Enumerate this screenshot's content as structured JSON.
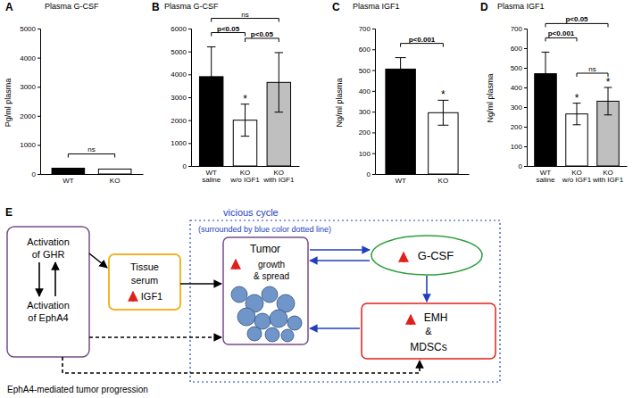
{
  "chart_data": [
    {
      "type": "bar",
      "panel": "A",
      "title": "Plasma G-CSF",
      "y_label": "Pg/ml plasma",
      "categories": [
        "WT",
        "KO"
      ],
      "values": [
        200,
        170
      ],
      "colors": [
        "#000000",
        "#ffffff"
      ],
      "ylim": [
        0,
        5000
      ],
      "yticks": [
        0,
        1000,
        2000,
        3000,
        4000,
        5000
      ],
      "annotations": [
        {
          "text": "ns",
          "between": [
            "WT",
            "KO"
          ]
        }
      ]
    },
    {
      "type": "bar",
      "panel": "B",
      "title": "Plasma G-CSF",
      "categories": [
        "WT saline",
        "KO w/o IGF1",
        "KO with IGF1"
      ],
      "values": [
        3900,
        2000,
        3650
      ],
      "errors": [
        1300,
        700,
        1300
      ],
      "colors": [
        "#000000",
        "#ffffff",
        "#bfbfbf"
      ],
      "bar_annotations": [
        null,
        "*",
        null
      ],
      "ylim": [
        0,
        6000
      ],
      "yticks": [
        0,
        1000,
        2000,
        3000,
        4000,
        5000,
        6000
      ],
      "annotations": [
        {
          "text": "ns",
          "between": [
            "WT saline",
            "KO with IGF1"
          ]
        },
        {
          "text": "p<0.05",
          "between": [
            "WT saline",
            "KO w/o IGF1"
          ]
        },
        {
          "text": "p<0.05",
          "between": [
            "KO w/o IGF1",
            "KO with IGF1"
          ]
        }
      ]
    },
    {
      "type": "bar",
      "panel": "C",
      "title": "Plasma IGF1",
      "y_label": "Ng/ml plasma",
      "categories": [
        "WT",
        "KO"
      ],
      "values": [
        505,
        295
      ],
      "errors": [
        55,
        60
      ],
      "colors": [
        "#000000",
        "#ffffff"
      ],
      "bar_annotations": [
        null,
        "*"
      ],
      "ylim": [
        0,
        700
      ],
      "yticks": [
        0,
        100,
        200,
        300,
        400,
        500,
        600,
        700
      ],
      "annotations": [
        {
          "text": "p<0.001",
          "between": [
            "WT",
            "KO"
          ]
        }
      ]
    },
    {
      "type": "bar",
      "panel": "D",
      "title": "Plasma IGF1",
      "y_label": "Ng/ml plasma",
      "categories": [
        "WT saline",
        "KO w/o IGF1",
        "KO with IGF1"
      ],
      "values": [
        470,
        265,
        330
      ],
      "errors": [
        110,
        55,
        70
      ],
      "colors": [
        "#000000",
        "#ffffff",
        "#bfbfbf"
      ],
      "bar_annotations": [
        null,
        "*",
        "*"
      ],
      "ylim": [
        0,
        700
      ],
      "yticks": [
        0,
        100,
        200,
        300,
        400,
        500,
        600,
        700
      ],
      "annotations": [
        {
          "text": "p<0.05",
          "between": [
            "WT saline",
            "KO with IGF1"
          ]
        },
        {
          "text": "p<0.001",
          "between": [
            "WT saline",
            "KO w/o IGF1"
          ]
        },
        {
          "text": "ns",
          "between": [
            "KO w/o IGF1",
            "KO with IGF1"
          ]
        }
      ]
    }
  ],
  "diagram": {
    "label": "E",
    "cycle_title": "vicious cycle",
    "cycle_note": "(surrounded by blue color dotted line)",
    "nodes": [
      {
        "lines": [
          "Activation",
          "of GHR"
        ]
      },
      {
        "lines": [
          "Activation",
          "of EphA4"
        ]
      },
      {
        "lines": [
          "Tissue",
          "serum",
          "IGF1"
        ]
      },
      {
        "lines": [
          "Tumor",
          "growth",
          "& spread"
        ]
      },
      {
        "lines": [
          "G-CSF"
        ]
      },
      {
        "lines": [
          "EMH",
          "&",
          "MDSCs"
        ]
      }
    ],
    "caption": "EphA4-mediated tumor progression"
  }
}
